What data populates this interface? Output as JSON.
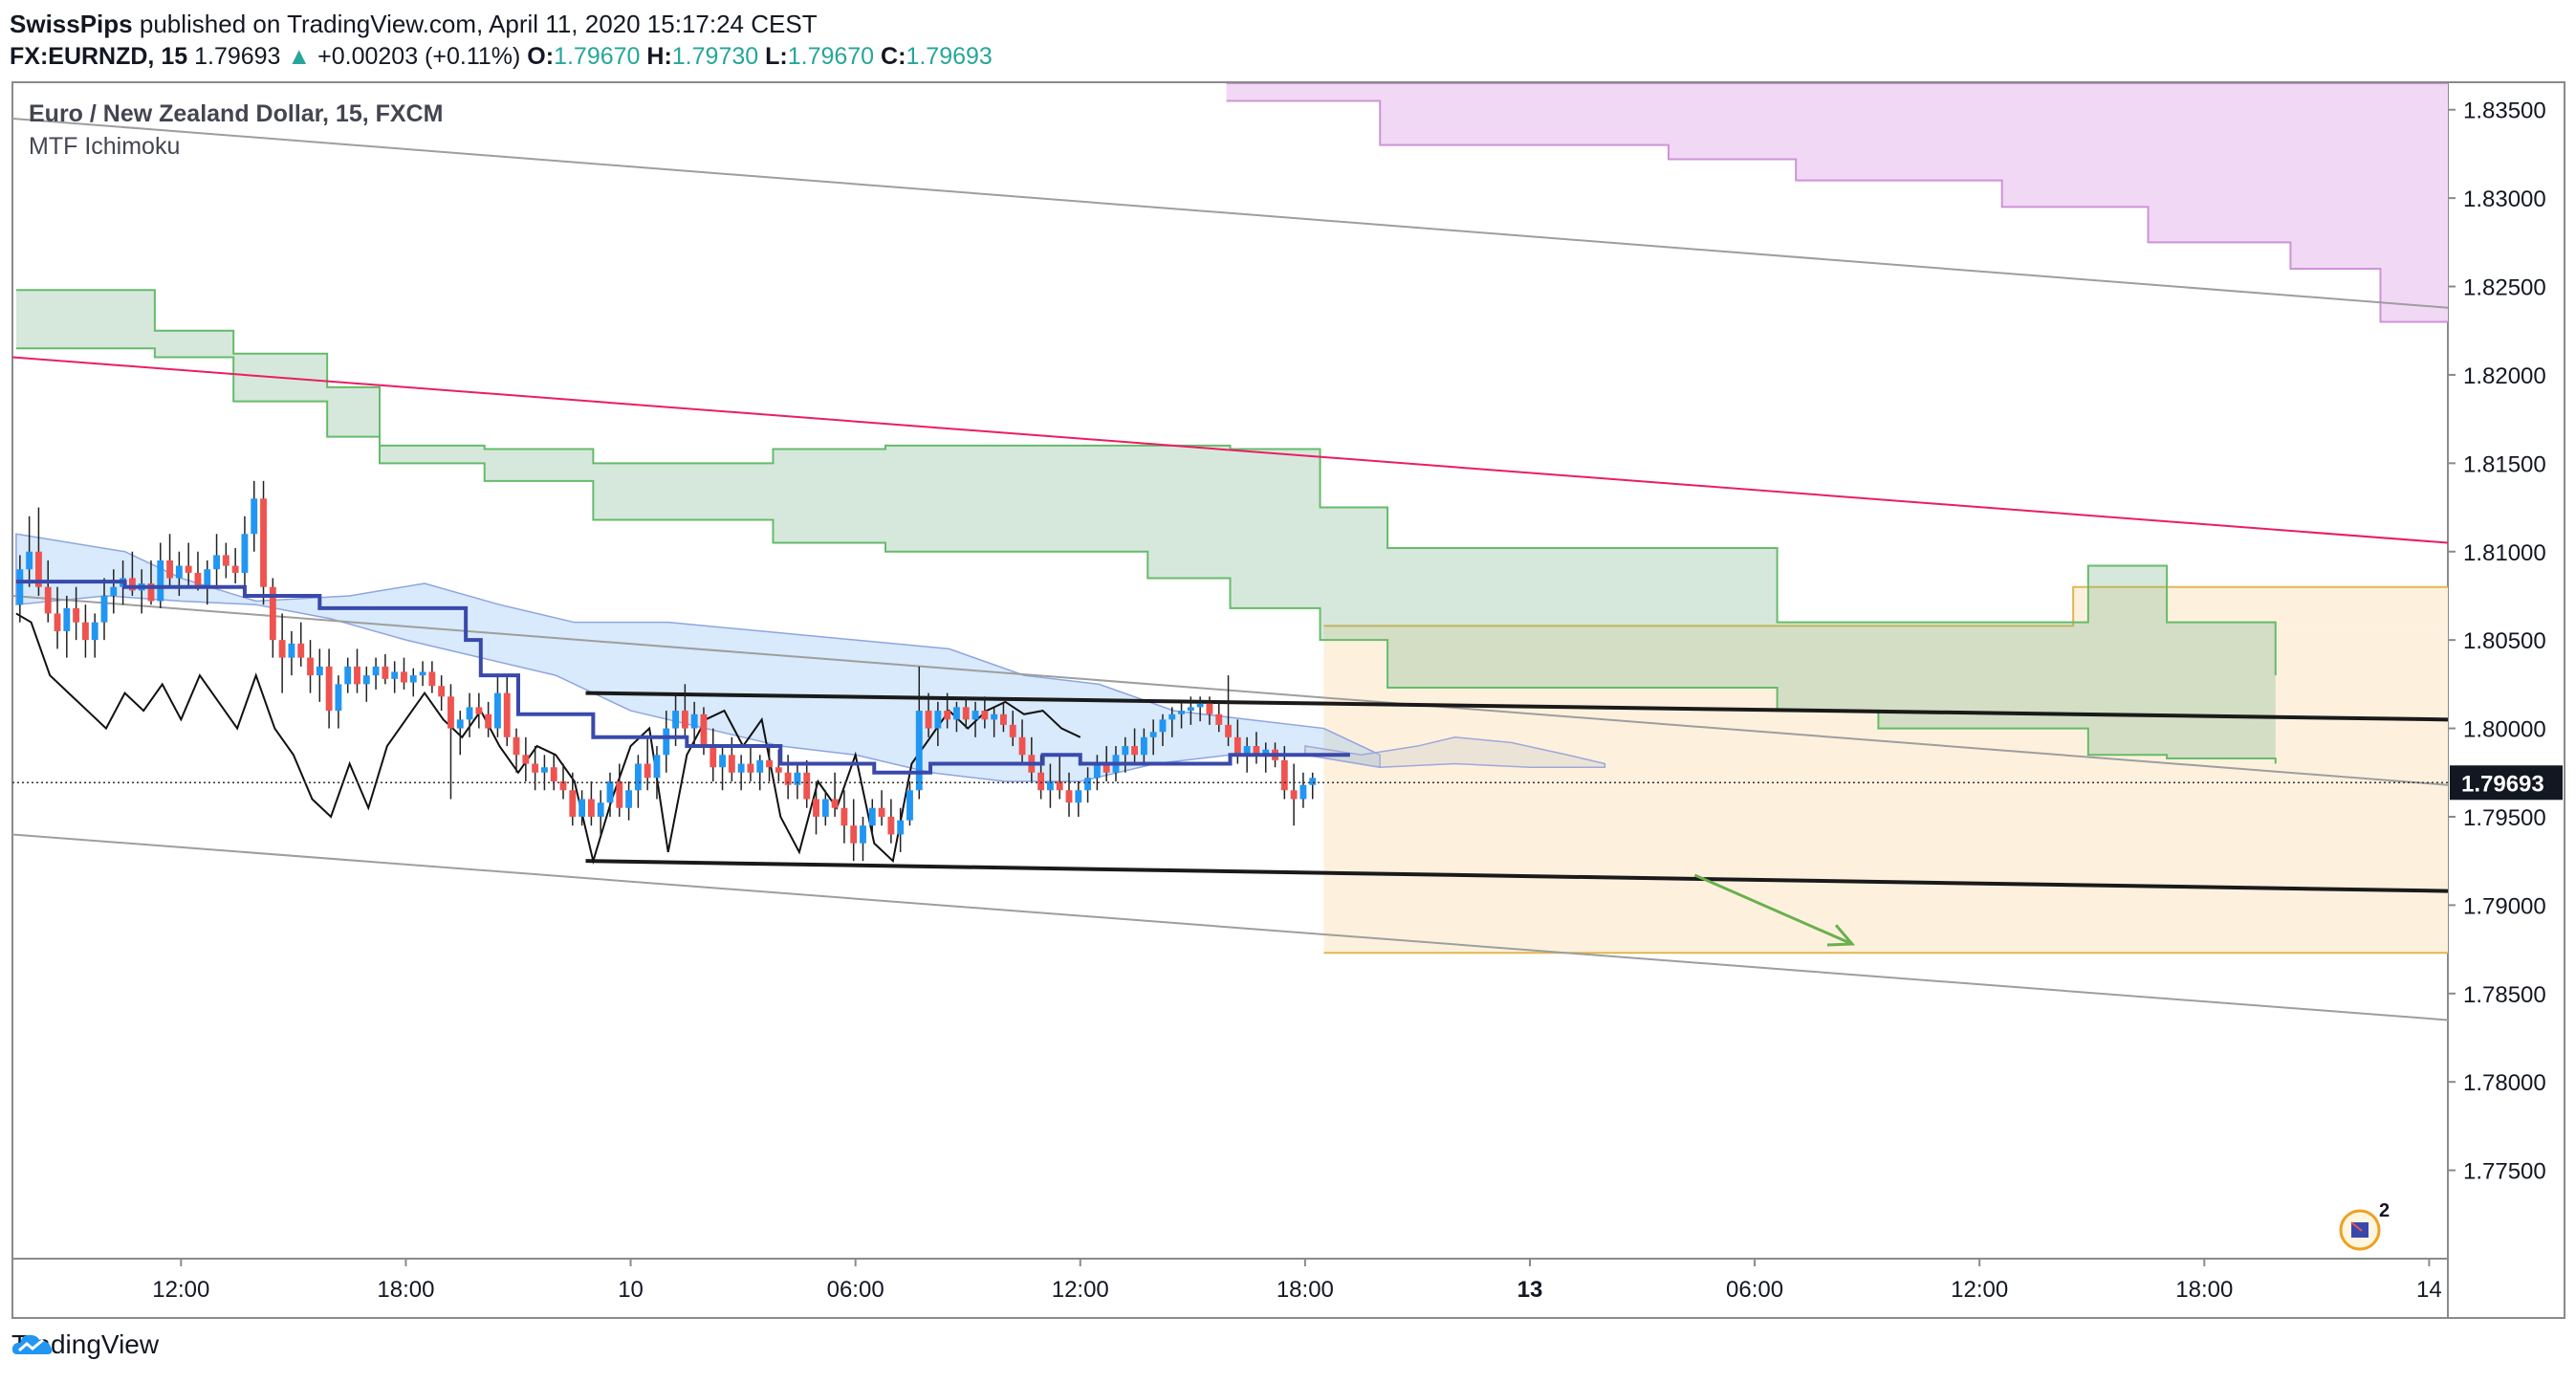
{
  "header": {
    "author": "SwissPips",
    "published_text": "published on TradingView.com, April 11, 2020 15:17:24 CEST"
  },
  "quote": {
    "symbol": "FX:EURNZD, 15",
    "price": "1.79693",
    "change_arrow": "▲",
    "change": "+0.00203 (+0.11%)",
    "o_label": "O:",
    "o": "1.79670",
    "h_label": "H:",
    "h": "1.79730",
    "l_label": "L:",
    "l": "1.79670",
    "c_label": "C:",
    "c": "1.79693"
  },
  "legend": {
    "title": "Euro / New Zealand Dollar, 15, FXCM",
    "indicator": "MTF Ichimoku"
  },
  "footer": {
    "brand": "TradingView",
    "logo_icon": "tradingview-cloud-icon"
  },
  "badge": {
    "count": "2",
    "icon": "flag-badge-icon"
  },
  "colors": {
    "bull": "#2196f3",
    "bear": "#ef5350",
    "kumo_green": "#66bb6a",
    "kumo_fill": "#b7d7c2",
    "purple": "#ce93d8",
    "target_zone": "#fdf1de",
    "target_line": "#e0b84c",
    "trend_pink": "#e91e63",
    "arrow": "#6ab04c"
  },
  "chart_data": {
    "type": "candlestick",
    "ylim": [
      1.77,
      1.8365
    ],
    "y_ticks": [
      "1.83500",
      "1.83000",
      "1.82500",
      "1.82000",
      "1.81500",
      "1.81000",
      "1.80500",
      "1.80000",
      "1.79500",
      "1.79000",
      "1.78500",
      "1.78000",
      "1.77500"
    ],
    "y_tick_values": [
      1.835,
      1.83,
      1.825,
      1.82,
      1.815,
      1.81,
      1.805,
      1.8,
      1.795,
      1.79,
      1.785,
      1.78,
      1.775
    ],
    "x_ticks": [
      "12:00",
      "18:00",
      "10",
      "06:00",
      "12:00",
      "18:00",
      "13",
      "06:00",
      "12:00",
      "18:00",
      "14"
    ],
    "x_tick_hours": [
      12,
      18,
      24,
      30,
      36,
      42,
      48,
      54,
      60,
      66,
      72
    ],
    "x_tick_bold": [
      false,
      false,
      false,
      false,
      false,
      false,
      true,
      false,
      false,
      false,
      false
    ],
    "x_range_hours": [
      7.5,
      72.5
    ],
    "last_price": "1.79693",
    "last_price_value": 1.79693,
    "trend_lines": [
      {
        "name": "channel-upper-grey",
        "from": [
          7.5,
          1.8345
        ],
        "to": [
          72.5,
          1.8238
        ],
        "color": "#9e9e9e",
        "width": 2
      },
      {
        "name": "channel-lower-grey",
        "from": [
          7.5,
          1.794
        ],
        "to": [
          72.5,
          1.7835
        ],
        "color": "#9e9e9e",
        "width": 2
      },
      {
        "name": "channel-mid-grey",
        "from": [
          7.5,
          1.8075
        ],
        "to": [
          72.5,
          1.7968
        ],
        "color": "#9e9e9e",
        "width": 2
      },
      {
        "name": "pink-resistance",
        "from": [
          7.5,
          1.821
        ],
        "to": [
          72.5,
          1.8105
        ],
        "color": "#e91e63",
        "width": 2
      },
      {
        "name": "range-top",
        "from": [
          22.8,
          1.802
        ],
        "to": [
          72.5,
          1.8005
        ],
        "color": "#1a1a1a",
        "width": 4
      },
      {
        "name": "range-bottom",
        "from": [
          22.8,
          1.7925
        ],
        "to": [
          72.5,
          1.7908
        ],
        "color": "#1a1a1a",
        "width": 4
      }
    ],
    "target_zone": {
      "x_from": 42.5,
      "x_to": 72.5,
      "y_top": 1.8058,
      "y_bottom": 1.7873,
      "extra_top_from": 62.5,
      "extra_top_value": 1.808
    },
    "arrow": {
      "from": [
        52.4,
        1.7917
      ],
      "to": [
        56.6,
        1.7878
      ]
    },
    "green_cloud": {
      "x": [
        7.6,
        11.3,
        11.3,
        13.4,
        13.4,
        15.9,
        15.9,
        17.3,
        17.3,
        20.1,
        20.1,
        23.0,
        23.0,
        27.8,
        27.8,
        30.8,
        30.8,
        37.8,
        37.8,
        40.0,
        40.0,
        42.4,
        42.4,
        44.2,
        44.2,
        54.6,
        54.6,
        57.3,
        57.3,
        62.9,
        62.9,
        65.0,
        65.0,
        67.9,
        67.9
      ],
      "top": [
        1.8248,
        1.8248,
        1.8225,
        1.8225,
        1.8212,
        1.8212,
        1.8193,
        1.8193,
        1.816,
        1.816,
        1.8158,
        1.8158,
        1.815,
        1.815,
        1.8158,
        1.8158,
        1.816,
        1.816,
        1.816,
        1.816,
        1.8158,
        1.8158,
        1.8125,
        1.8125,
        1.8102,
        1.8102,
        1.806,
        1.806,
        1.806,
        1.806,
        1.8092,
        1.8092,
        1.806,
        1.806,
        1.803
      ],
      "bottom": [
        1.8215,
        1.8215,
        1.821,
        1.821,
        1.8185,
        1.8185,
        1.8165,
        1.8165,
        1.815,
        1.815,
        1.814,
        1.814,
        1.8118,
        1.8118,
        1.8105,
        1.8105,
        1.81,
        1.81,
        1.8085,
        1.8085,
        1.8068,
        1.8068,
        1.805,
        1.805,
        1.8023,
        1.8023,
        1.801,
        1.801,
        1.8,
        1.8,
        1.7985,
        1.7985,
        1.7983,
        1.7983,
        1.798
      ],
      "x_end": 68.0
    },
    "purple_cloud": {
      "x": [
        39.9,
        44.0,
        44.0,
        51.7,
        51.7,
        55.1,
        55.1,
        60.6,
        60.6,
        64.5,
        64.5,
        68.3,
        68.3,
        70.7,
        70.7,
        72.5
      ],
      "top": [
        1.8365,
        1.8365,
        1.8365,
        1.8365,
        1.8365,
        1.8365,
        1.8365,
        1.8365,
        1.8365,
        1.8365,
        1.8365,
        1.8365,
        1.8365,
        1.8365,
        1.8365,
        1.8365
      ],
      "bottom": [
        1.8355,
        1.8355,
        1.833,
        1.833,
        1.8322,
        1.8322,
        1.831,
        1.831,
        1.8295,
        1.8295,
        1.8275,
        1.8275,
        1.826,
        1.826,
        1.823,
        1.823
      ]
    },
    "blue_cloud_poly": [
      [
        7.6,
        1.811
      ],
      [
        10.5,
        1.81
      ],
      [
        12.0,
        1.8085
      ],
      [
        14.0,
        1.8072
      ],
      [
        16.5,
        1.8075
      ],
      [
        18.5,
        1.8082
      ],
      [
        20.5,
        1.807
      ],
      [
        22.5,
        1.806
      ],
      [
        25.0,
        1.806
      ],
      [
        27.5,
        1.8055
      ],
      [
        30.0,
        1.805
      ],
      [
        32.5,
        1.8045
      ],
      [
        34.5,
        1.803
      ],
      [
        36.5,
        1.8025
      ],
      [
        38.5,
        1.801
      ],
      [
        40.5,
        1.8005
      ],
      [
        42.5,
        1.8
      ],
      [
        44.0,
        1.7985
      ],
      [
        44.0,
        1.7978
      ],
      [
        42.0,
        1.7985
      ],
      [
        40.0,
        1.7985
      ],
      [
        38.0,
        1.798
      ],
      [
        36.0,
        1.797
      ],
      [
        34.0,
        1.797
      ],
      [
        32.0,
        1.7975
      ],
      [
        30.0,
        1.7985
      ],
      [
        28.0,
        1.799
      ],
      [
        26.0,
        1.8
      ],
      [
        24.0,
        1.801
      ],
      [
        22.0,
        1.803
      ],
      [
        20.0,
        1.804
      ],
      [
        18.0,
        1.805
      ],
      [
        16.0,
        1.8062
      ],
      [
        14.0,
        1.807
      ],
      [
        12.0,
        1.8072
      ],
      [
        10.0,
        1.8075
      ],
      [
        7.6,
        1.807
      ]
    ],
    "grey_cloud_poly": [
      [
        42.0,
        1.799
      ],
      [
        43.5,
        1.7985
      ],
      [
        45.0,
        1.799
      ],
      [
        46.0,
        1.7995
      ],
      [
        47.5,
        1.7992
      ],
      [
        49.0,
        1.7985
      ],
      [
        50.0,
        1.798
      ],
      [
        50.0,
        1.7978
      ],
      [
        48.0,
        1.7978
      ],
      [
        46.0,
        1.798
      ],
      [
        44.0,
        1.7978
      ],
      [
        42.0,
        1.7985
      ]
    ],
    "kijun_line": {
      "x": [
        7.6,
        10.5,
        10.5,
        13.7,
        13.7,
        15.7,
        15.7,
        17.6,
        17.6,
        19.6,
        19.6,
        20.0,
        20.0,
        21.0,
        21.0,
        23.0,
        23.0,
        25.5,
        25.5,
        28.0,
        28.0,
        30.5,
        30.5,
        32.0,
        32.0,
        35.0,
        35.0,
        36.0,
        36.0,
        40.0,
        40.0,
        43.2
      ],
      "y": [
        1.8083,
        1.8083,
        1.808,
        1.808,
        1.8075,
        1.8075,
        1.8068,
        1.8068,
        1.8068,
        1.8068,
        1.805,
        1.805,
        1.803,
        1.803,
        1.8008,
        1.8008,
        1.7995,
        1.7995,
        1.799,
        1.799,
        1.798,
        1.798,
        1.7975,
        1.7975,
        1.798,
        1.798,
        1.7985,
        1.7985,
        1.798,
        1.798,
        1.7985,
        1.7985
      ]
    },
    "chikou_line": {
      "x": [
        7.6,
        8.0,
        8.5,
        9.0,
        9.5,
        10.0,
        10.5,
        11.0,
        11.5,
        12.0,
        12.5,
        13.0,
        13.5,
        14.0,
        14.5,
        15.0,
        15.5,
        16.0,
        16.5,
        17.0,
        17.5,
        18.0,
        18.5,
        19.0,
        19.5,
        20.0,
        20.5,
        21.0,
        21.5,
        22.0,
        22.5,
        23.0,
        23.5,
        24.0,
        24.5,
        25.0,
        25.5,
        26.0,
        26.5,
        27.0,
        27.5,
        28.0,
        28.5,
        29.0,
        29.5,
        30.0,
        30.5,
        31.0,
        31.5,
        32.0,
        32.5,
        33.0,
        33.5,
        34.0,
        34.5,
        35.0,
        35.5,
        36.0
      ],
      "y": [
        1.8065,
        1.806,
        1.803,
        1.802,
        1.801,
        1.8,
        1.802,
        1.801,
        1.8025,
        1.8005,
        1.803,
        1.8015,
        1.8,
        1.803,
        1.8,
        1.7985,
        1.796,
        1.795,
        1.798,
        1.7955,
        1.799,
        1.8005,
        1.802,
        1.8005,
        1.7995,
        1.801,
        1.799,
        1.7975,
        1.799,
        1.7985,
        1.797,
        1.7925,
        1.796,
        1.799,
        1.8,
        1.793,
        1.7985,
        1.8005,
        1.801,
        1.799,
        1.8005,
        1.795,
        1.793,
        1.797,
        1.7955,
        1.7985,
        1.7935,
        1.7925,
        1.798,
        1.7995,
        1.801,
        1.8,
        1.801,
        1.8015,
        1.8008,
        1.801,
        1.8,
        1.7995
      ]
    },
    "candles_ohlc_compact": "7.70,1.8070,1.8098,1.8060,1.8090;7.95,1.8090,1.8120,1.8080,1.8100;8.20,1.8100,1.8125,1.8075,1.8080;8.45,1.8080,1.8095,1.8060,1.8065;8.70,1.8065,1.8080,1.8045,1.8055;8.95,1.8055,1.8075,1.8040,1.8068;9.20,1.8068,1.8080,1.8050,1.8060;9.45,1.8060,1.8070,1.8040,1.8050;9.70,1.8050,1.8065,1.8040,1.8060;9.95,1.8060,1.8085,1.8050,1.8075;10.20,1.8075,1.8090,1.8065,1.8080;10.45,1.8080,1.8095,1.8070,1.8085;10.70,1.8085,1.8100,1.8075,1.8078;10.95,1.8078,1.8090,1.8065,1.8082;11.20,1.8082,1.8095,1.8070,1.8072;11.45,1.8072,1.8105,1.8068,1.8095;11.70,1.8095,1.8110,1.8080,1.8085;11.95,1.8085,1.8100,1.8075,1.8092;12.20,1.8092,1.8105,1.8080,1.8088;12.45,1.8088,1.8100,1.8078,1.8080;12.70,1.8080,1.8095,1.8070,1.8090;12.95,1.8090,1.8110,1.8080,1.8098;13.20,1.8098,1.8105,1.8085,1.8092;13.45,1.8092,1.8102,1.8082,1.8088;13.70,1.8088,1.8120,1.8080,1.8110;13.95,1.8110,1.8140,1.8100,1.8130;14.20,1.8130,1.8140,1.8070,1.8080;14.45,1.8080,1.8085,1.8040,1.8050;14.70,1.8050,1.8065,1.8020,1.8040;14.95,1.8040,1.8055,1.8030,1.8048;15.20,1.8048,1.8060,1.8035,1.8040;15.45,1.8040,1.8050,1.8020,1.8030;15.70,1.8030,1.8045,1.8015,1.8035;15.95,1.8035,1.8045,1.8000,1.8010;16.20,1.8010,1.8030,1.8000,1.8025;16.45,1.8025,1.8040,1.8020,1.8035;16.70,1.8035,1.8045,1.8020,1.8025;16.95,1.8025,1.8035,1.8015,1.8030;17.20,1.8030,1.8040,1.8022,1.8035;17.45,1.8035,1.8042,1.8025,1.8028;17.70,1.8028,1.8038,1.8020,1.8032;17.95,1.8032,1.8040,1.8022,1.8026;18.20,1.8026,1.8034,1.8018,1.8030;18.45,1.8030,1.8038,1.8024,1.8032;18.70,1.8032,1.8038,1.8020,1.8024;18.95,1.8024,1.8030,1.8010,1.8018;19.20,1.8018,1.8025,1.7960,1.8000;19.45,1.8000,1.8010,1.7985,1.8005;19.70,1.8005,1.8020,1.7995,1.8012;19.95,1.8012,1.8020,1.8000,1.8008;20.20,1.8008,1.8015,1.7995,1.8000;20.45,1.8000,1.8030,1.7995,1.8020;20.70,1.8020,1.8030,1.7990,1.7995;20.95,1.7995,1.8000,1.7975,1.7985;21.20,1.7985,1.7995,1.7970,1.7980;21.45,1.7980,1.7990,1.7965,1.7975;21.70,1.7975,1.7985,1.7965,1.7978;21.95,1.7978,1.7985,1.7965,1.7970;22.20,1.7970,1.7980,1.7960,1.7965;22.45,1.7965,1.7975,1.7945,1.7950;22.70,1.7950,1.7965,1.7945,1.7960;22.95,1.7960,1.7970,1.7945,1.7950;23.20,1.7950,1.7965,1.7940,1.7958;23.45,1.7958,1.7975,1.7950,1.7970;23.70,1.7970,1.7980,1.7950,1.7955;23.95,1.7955,1.7970,1.7948,1.7965;24.20,1.7965,1.7985,1.7955,1.7980;24.45,1.7980,1.7995,1.7965,1.7972;24.70,1.7972,1.7990,1.7960,1.7985;24.95,1.7985,1.8010,1.7975,1.8000;25.20,1.8000,1.8020,1.7990,1.8010;25.45,1.8010,1.8025,1.7995,1.8000;25.70,1.8000,1.8015,1.7990,1.8008;25.95,1.8008,1.8012,1.7985,1.7990;26.20,1.7990,1.8000,1.7970,1.7978;26.45,1.7978,1.7990,1.7965,1.7985;26.70,1.7985,1.7995,1.7970,1.7975;26.95,1.7975,1.7985,1.7965,1.7980;27.20,1.7980,1.7990,1.7970,1.7975;27.45,1.7975,1.7985,1.7965,1.7982;27.70,1.7982,1.7990,1.7970,1.7978;27.95,1.7978,1.7988,1.7970,1.7975;28.20,1.7975,1.7985,1.7960,1.7968;28.45,1.7968,1.7980,1.7960,1.7975;28.70,1.7975,1.7982,1.7955,1.7960;28.95,1.7960,1.7970,1.7940,1.7950;29.20,1.7950,1.7965,1.7945,1.7960;29.45,1.7960,1.7975,1.7950,1.7955;29.70,1.7955,1.7965,1.7935,1.7945;29.95,1.7945,1.7960,1.7925,1.7935;30.20,1.7935,1.7950,1.7925,1.7945;30.45,1.7945,1.7960,1.7940,1.7955;30.70,1.7955,1.7965,1.7945,1.7950;30.95,1.7950,1.7960,1.7935,1.7940;31.20,1.7940,1.7955,1.7930,1.7948;31.45,1.7948,1.7970,1.7945,1.7965;31.70,1.7965,1.8035,1.7960,1.8010;31.95,1.8010,1.8020,1.7995,1.8000;32.20,1.8000,1.8015,1.7990,1.8010;32.45,1.8010,1.8020,1.8000,1.8005;32.70,1.8005,1.8015,1.7998,1.8012;32.95,1.8012,1.8018,1.8000,1.8005;33.20,1.8005,1.8015,1.7995,1.8010;33.45,1.8010,1.8018,1.8000,1.8005;33.70,1.8005,1.8012,1.7995,1.8008;33.95,1.8008,1.8015,1.7998,1.8002;34.20,1.8002,1.8010,1.7990,1.7995;34.45,1.7995,1.8005,1.7980,1.7985;34.70,1.7985,1.7995,1.7970,1.7975;34.95,1.7975,1.7985,1.7960,1.7965;35.20,1.7965,1.7980,1.7955,1.7970;35.45,1.7970,1.7985,1.7960,1.7965;35.70,1.7965,1.7975,1.7950,1.7958;35.95,1.7958,1.7970,1.7950,1.7965;36.20,1.7965,1.7978,1.7958,1.7972;36.45,1.7972,1.7985,1.7965,1.7980;36.70,1.7980,1.7990,1.7970,1.7975;36.95,1.7975,1.7990,1.7970,1.7985;37.20,1.7985,1.7995,1.7975,1.7990;37.45,1.7990,1.8000,1.7980,1.7985;37.70,1.7985,1.8000,1.7980,1.7995;37.95,1.7995,1.8005,1.7985,1.7998;38.20,1.7998,1.8008,1.7990,1.8005;38.45,1.8005,1.8012,1.7995,1.8008;38.70,1.8008,1.8015,1.8000,1.8010;38.95,1.8010,1.8018,1.8002,1.8012;39.20,1.8012,1.8018,1.8004,1.8014;39.45,1.8014,1.8018,1.8002,1.8008;39.70,1.8008,1.8015,1.7998,1.8002;39.95,1.8002,1.8030,1.7990,1.7995;40.20,1.7995,1.8005,1.7980,1.7985;40.45,1.7985,1.7995,1.7975,1.7990;40.70,1.7990,1.7998,1.7980,1.7985;40.95,1.7985,1.7992,1.7975,1.7988;41.20,1.7988,1.7992,1.7978,1.7982;41.45,1.7982,1.7990,1.7960,1.7965;41.70,1.7965,1.7980,1.7945,1.7960;41.95,1.7960,1.7975,1.7955,1.7968;42.20,1.7968,1.7975,1.7960,1.7972"
  }
}
